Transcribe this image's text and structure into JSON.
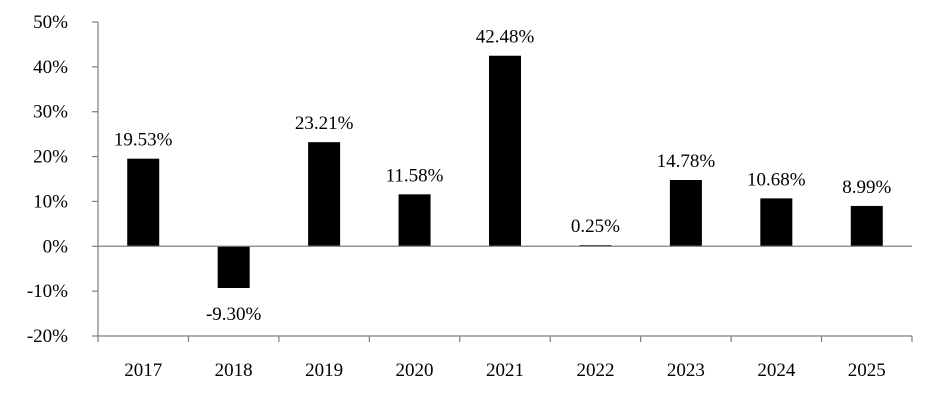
{
  "chart_data": {
    "type": "bar",
    "categories": [
      "2017",
      "2018",
      "2019",
      "2020",
      "2021",
      "2022",
      "2023",
      "2024",
      "2025"
    ],
    "values": [
      19.53,
      -9.3,
      23.21,
      11.58,
      42.48,
      0.25,
      14.78,
      10.68,
      8.99
    ],
    "data_labels": [
      "19.53%",
      "-9.30%",
      "23.21%",
      "11.58%",
      "42.48%",
      "0.25%",
      "14.78%",
      "10.68%",
      "8.99%"
    ],
    "title": "",
    "xlabel": "",
    "ylabel": "",
    "ylim": [
      -20,
      50
    ],
    "yticks": [
      50,
      40,
      30,
      20,
      10,
      0,
      -10,
      -20
    ],
    "ytick_labels": [
      "50%",
      "40%",
      "30%",
      "20%",
      "10%",
      "0%",
      "-10%",
      "-20%"
    ],
    "grid": false,
    "legend": "none",
    "bar_color": "#000000"
  }
}
